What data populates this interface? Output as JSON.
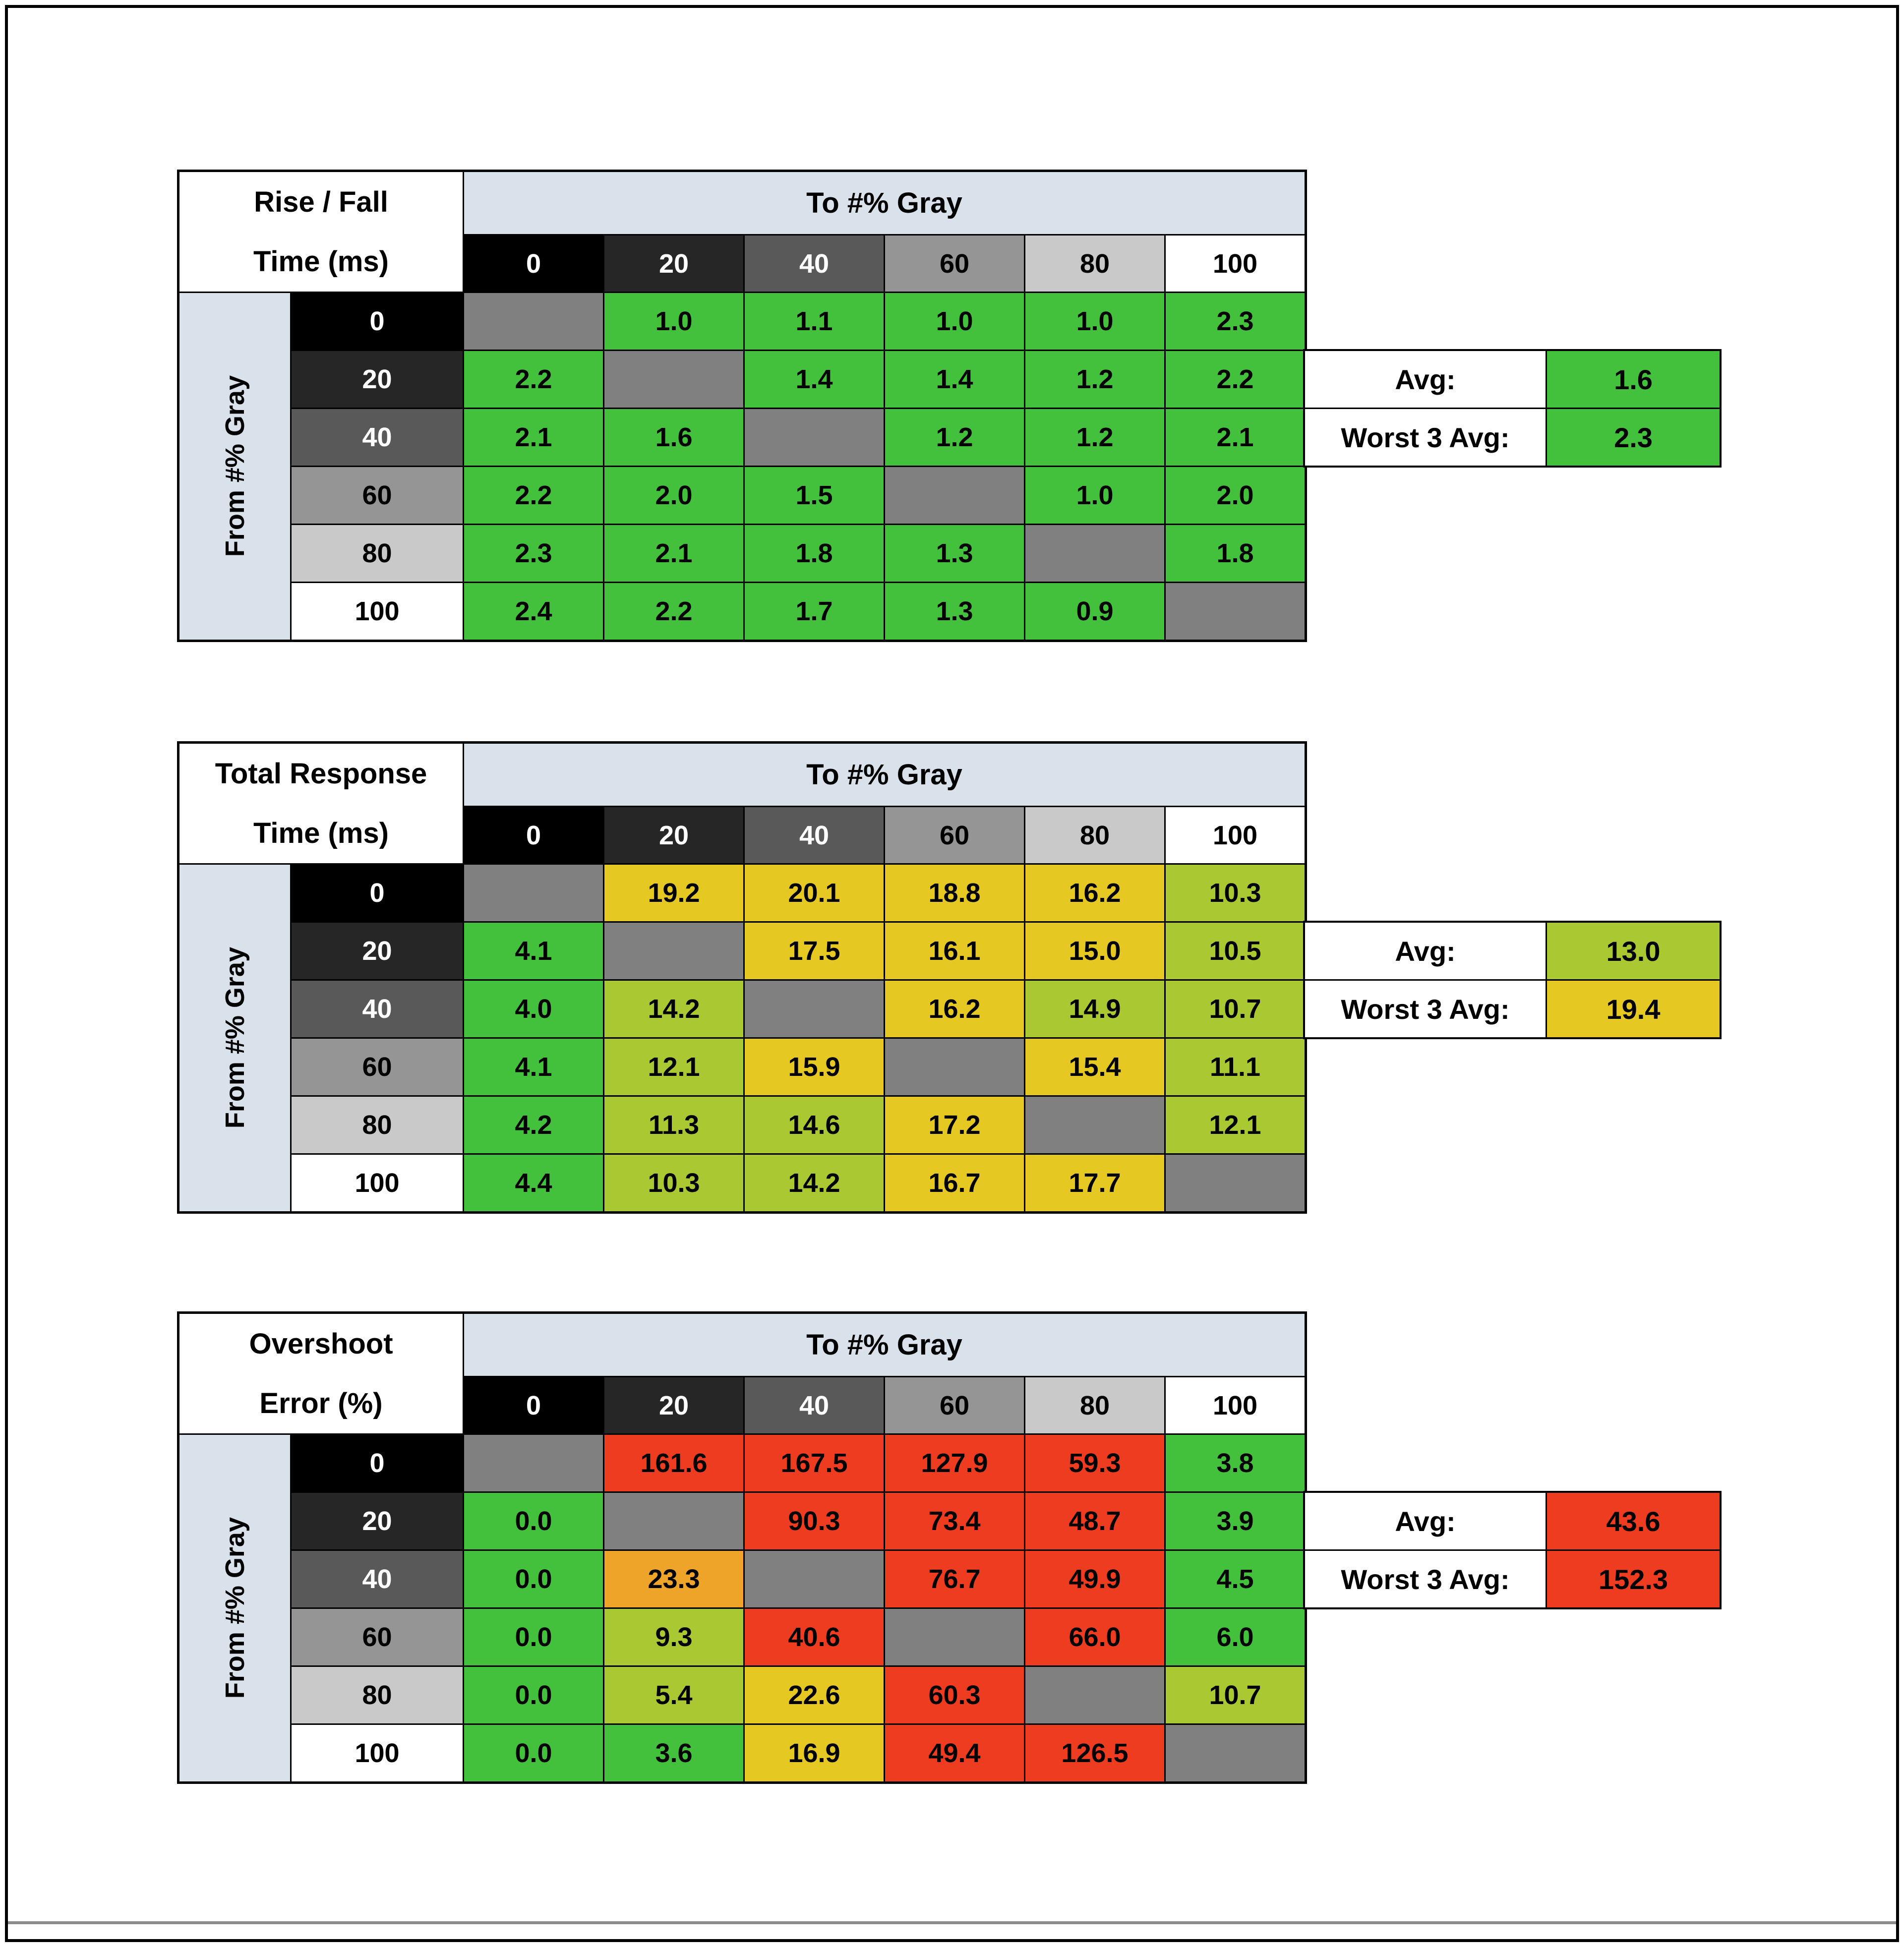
{
  "colors": {
    "g": "#44c13c",
    "yg": "#aac832",
    "y": "#e5c822",
    "o": "#eda428",
    "r": "#ee3c20",
    "x": "#808080",
    "band": "#d9e1ea",
    "summary_label_bg": "#ffffff",
    "frame": "#000000",
    "divider": "#8c8c8c"
  },
  "header_shades": [
    {
      "bg": "#000000",
      "fg": "#ffffff"
    },
    {
      "bg": "#262626",
      "fg": "#ffffff"
    },
    {
      "bg": "#595959",
      "fg": "#ffffff"
    },
    {
      "bg": "#959595",
      "fg": "#000000"
    },
    {
      "bg": "#c9c9c9",
      "fg": "#000000"
    },
    {
      "bg": "#ffffff",
      "fg": "#000000"
    }
  ],
  "chart_data": [
    {
      "type": "heatmap",
      "title_lines": [
        "Rise / Fall",
        "Time (ms)"
      ],
      "col_axis_label": "To #% Gray",
      "row_axis_label": "From #% Gray",
      "col_labels": [
        "0",
        "20",
        "40",
        "60",
        "80",
        "100"
      ],
      "row_labels": [
        "0",
        "20",
        "40",
        "60",
        "80",
        "100"
      ],
      "values": [
        [
          "",
          "1.0",
          "1.1",
          "1.0",
          "1.0",
          "2.3"
        ],
        [
          "2.2",
          "",
          "1.4",
          "1.4",
          "1.2",
          "2.2"
        ],
        [
          "2.1",
          "1.6",
          "",
          "1.2",
          "1.2",
          "2.1"
        ],
        [
          "2.2",
          "2.0",
          "1.5",
          "",
          "1.0",
          "2.0"
        ],
        [
          "2.3",
          "2.1",
          "1.8",
          "1.3",
          "",
          "1.8"
        ],
        [
          "2.4",
          "2.2",
          "1.7",
          "1.3",
          "0.9",
          ""
        ]
      ],
      "cell_colors": [
        [
          "x",
          "g",
          "g",
          "g",
          "g",
          "g"
        ],
        [
          "g",
          "x",
          "g",
          "g",
          "g",
          "g"
        ],
        [
          "g",
          "g",
          "x",
          "g",
          "g",
          "g"
        ],
        [
          "g",
          "g",
          "g",
          "x",
          "g",
          "g"
        ],
        [
          "g",
          "g",
          "g",
          "g",
          "x",
          "g"
        ],
        [
          "g",
          "g",
          "g",
          "g",
          "g",
          "x"
        ]
      ],
      "summary": {
        "avg_label": "Avg:",
        "avg_value": "1.6",
        "avg_color": "g",
        "worst_label": "Worst 3 Avg:",
        "worst_value": "2.3",
        "worst_color": "g"
      }
    },
    {
      "type": "heatmap",
      "title_lines": [
        "Total Response",
        "Time (ms)"
      ],
      "col_axis_label": "To #% Gray",
      "row_axis_label": "From #% Gray",
      "col_labels": [
        "0",
        "20",
        "40",
        "60",
        "80",
        "100"
      ],
      "row_labels": [
        "0",
        "20",
        "40",
        "60",
        "80",
        "100"
      ],
      "values": [
        [
          "",
          "19.2",
          "20.1",
          "18.8",
          "16.2",
          "10.3"
        ],
        [
          "4.1",
          "",
          "17.5",
          "16.1",
          "15.0",
          "10.5"
        ],
        [
          "4.0",
          "14.2",
          "",
          "16.2",
          "14.9",
          "10.7"
        ],
        [
          "4.1",
          "12.1",
          "15.9",
          "",
          "15.4",
          "11.1"
        ],
        [
          "4.2",
          "11.3",
          "14.6",
          "17.2",
          "",
          "12.1"
        ],
        [
          "4.4",
          "10.3",
          "14.2",
          "16.7",
          "17.7",
          ""
        ]
      ],
      "cell_colors": [
        [
          "x",
          "y",
          "y",
          "y",
          "y",
          "yg"
        ],
        [
          "g",
          "x",
          "y",
          "y",
          "y",
          "yg"
        ],
        [
          "g",
          "yg",
          "x",
          "y",
          "yg",
          "yg"
        ],
        [
          "g",
          "yg",
          "y",
          "x",
          "y",
          "yg"
        ],
        [
          "g",
          "yg",
          "yg",
          "y",
          "x",
          "yg"
        ],
        [
          "g",
          "yg",
          "yg",
          "y",
          "y",
          "x"
        ]
      ],
      "summary": {
        "avg_label": "Avg:",
        "avg_value": "13.0",
        "avg_color": "yg",
        "worst_label": "Worst 3 Avg:",
        "worst_value": "19.4",
        "worst_color": "y"
      }
    },
    {
      "type": "heatmap",
      "title_lines": [
        "Overshoot",
        "Error (%)"
      ],
      "col_axis_label": "To #% Gray",
      "row_axis_label": "From #% Gray",
      "col_labels": [
        "0",
        "20",
        "40",
        "60",
        "80",
        "100"
      ],
      "row_labels": [
        "0",
        "20",
        "40",
        "60",
        "80",
        "100"
      ],
      "values": [
        [
          "",
          "161.6",
          "167.5",
          "127.9",
          "59.3",
          "3.8"
        ],
        [
          "0.0",
          "",
          "90.3",
          "73.4",
          "48.7",
          "3.9"
        ],
        [
          "0.0",
          "23.3",
          "",
          "76.7",
          "49.9",
          "4.5"
        ],
        [
          "0.0",
          "9.3",
          "40.6",
          "",
          "66.0",
          "6.0"
        ],
        [
          "0.0",
          "5.4",
          "22.6",
          "60.3",
          "",
          "10.7"
        ],
        [
          "0.0",
          "3.6",
          "16.9",
          "49.4",
          "126.5",
          ""
        ]
      ],
      "cell_colors": [
        [
          "x",
          "r",
          "r",
          "r",
          "r",
          "g"
        ],
        [
          "g",
          "x",
          "r",
          "r",
          "r",
          "g"
        ],
        [
          "g",
          "o",
          "x",
          "r",
          "r",
          "g"
        ],
        [
          "g",
          "yg",
          "r",
          "x",
          "r",
          "g"
        ],
        [
          "g",
          "yg",
          "y",
          "r",
          "x",
          "yg"
        ],
        [
          "g",
          "g",
          "y",
          "r",
          "r",
          "x"
        ]
      ],
      "summary": {
        "avg_label": "Avg:",
        "avg_value": "43.6",
        "avg_color": "r",
        "worst_label": "Worst 3 Avg:",
        "worst_value": "152.3",
        "worst_color": "r"
      }
    }
  ]
}
